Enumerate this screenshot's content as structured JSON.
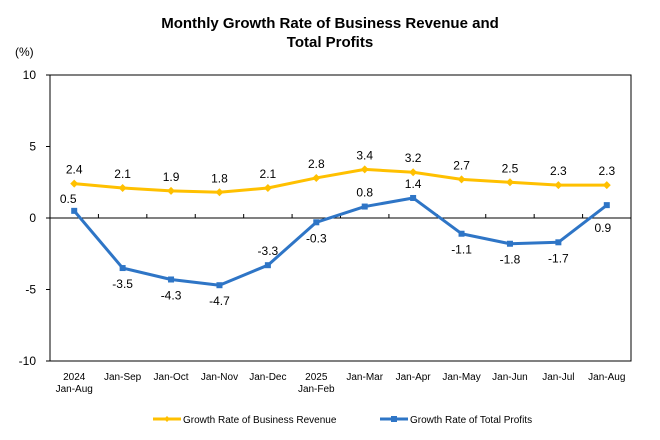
{
  "chart_data": {
    "type": "line",
    "title": [
      "Monthly Growth Rate of Business Revenue and",
      "Total Profits"
    ],
    "ylabel": "(%)",
    "xlabel": "",
    "ylim": [
      -10,
      10
    ],
    "yticks": [
      10,
      5,
      0,
      -5,
      -10
    ],
    "grid": false,
    "legend_position": "bottom",
    "categories": [
      [
        "2024",
        "Jan-Aug"
      ],
      [
        "Jan-Sep"
      ],
      [
        "Jan-Oct"
      ],
      [
        "Jan-Nov"
      ],
      [
        "Jan-Dec"
      ],
      [
        "2025",
        "Jan-Feb"
      ],
      [
        "Jan-Mar"
      ],
      [
        "Jan-Apr"
      ],
      [
        "Jan-May"
      ],
      [
        "Jan-Jun"
      ],
      [
        "Jan-Jul"
      ],
      [
        "Jan-Aug"
      ]
    ],
    "series": [
      {
        "name": "Growth Rate of Business Revenue",
        "color": "#FFC000",
        "marker": "diamond",
        "values": [
          2.4,
          2.1,
          1.9,
          1.8,
          2.1,
          2.8,
          3.4,
          3.2,
          2.7,
          2.5,
          2.3,
          2.3
        ],
        "label_position": "above"
      },
      {
        "name": "Growth Rate of Total Profits",
        "color": "#2E75C6",
        "marker": "square",
        "values": [
          0.5,
          -3.5,
          -4.3,
          -4.7,
          -3.3,
          -0.3,
          0.8,
          1.4,
          -1.1,
          -1.8,
          -1.7,
          0.9
        ],
        "label_position": [
          "above",
          "below",
          "below",
          "below",
          "above",
          "below",
          "above",
          "above",
          "below",
          "below",
          "below",
          "below"
        ]
      }
    ]
  }
}
